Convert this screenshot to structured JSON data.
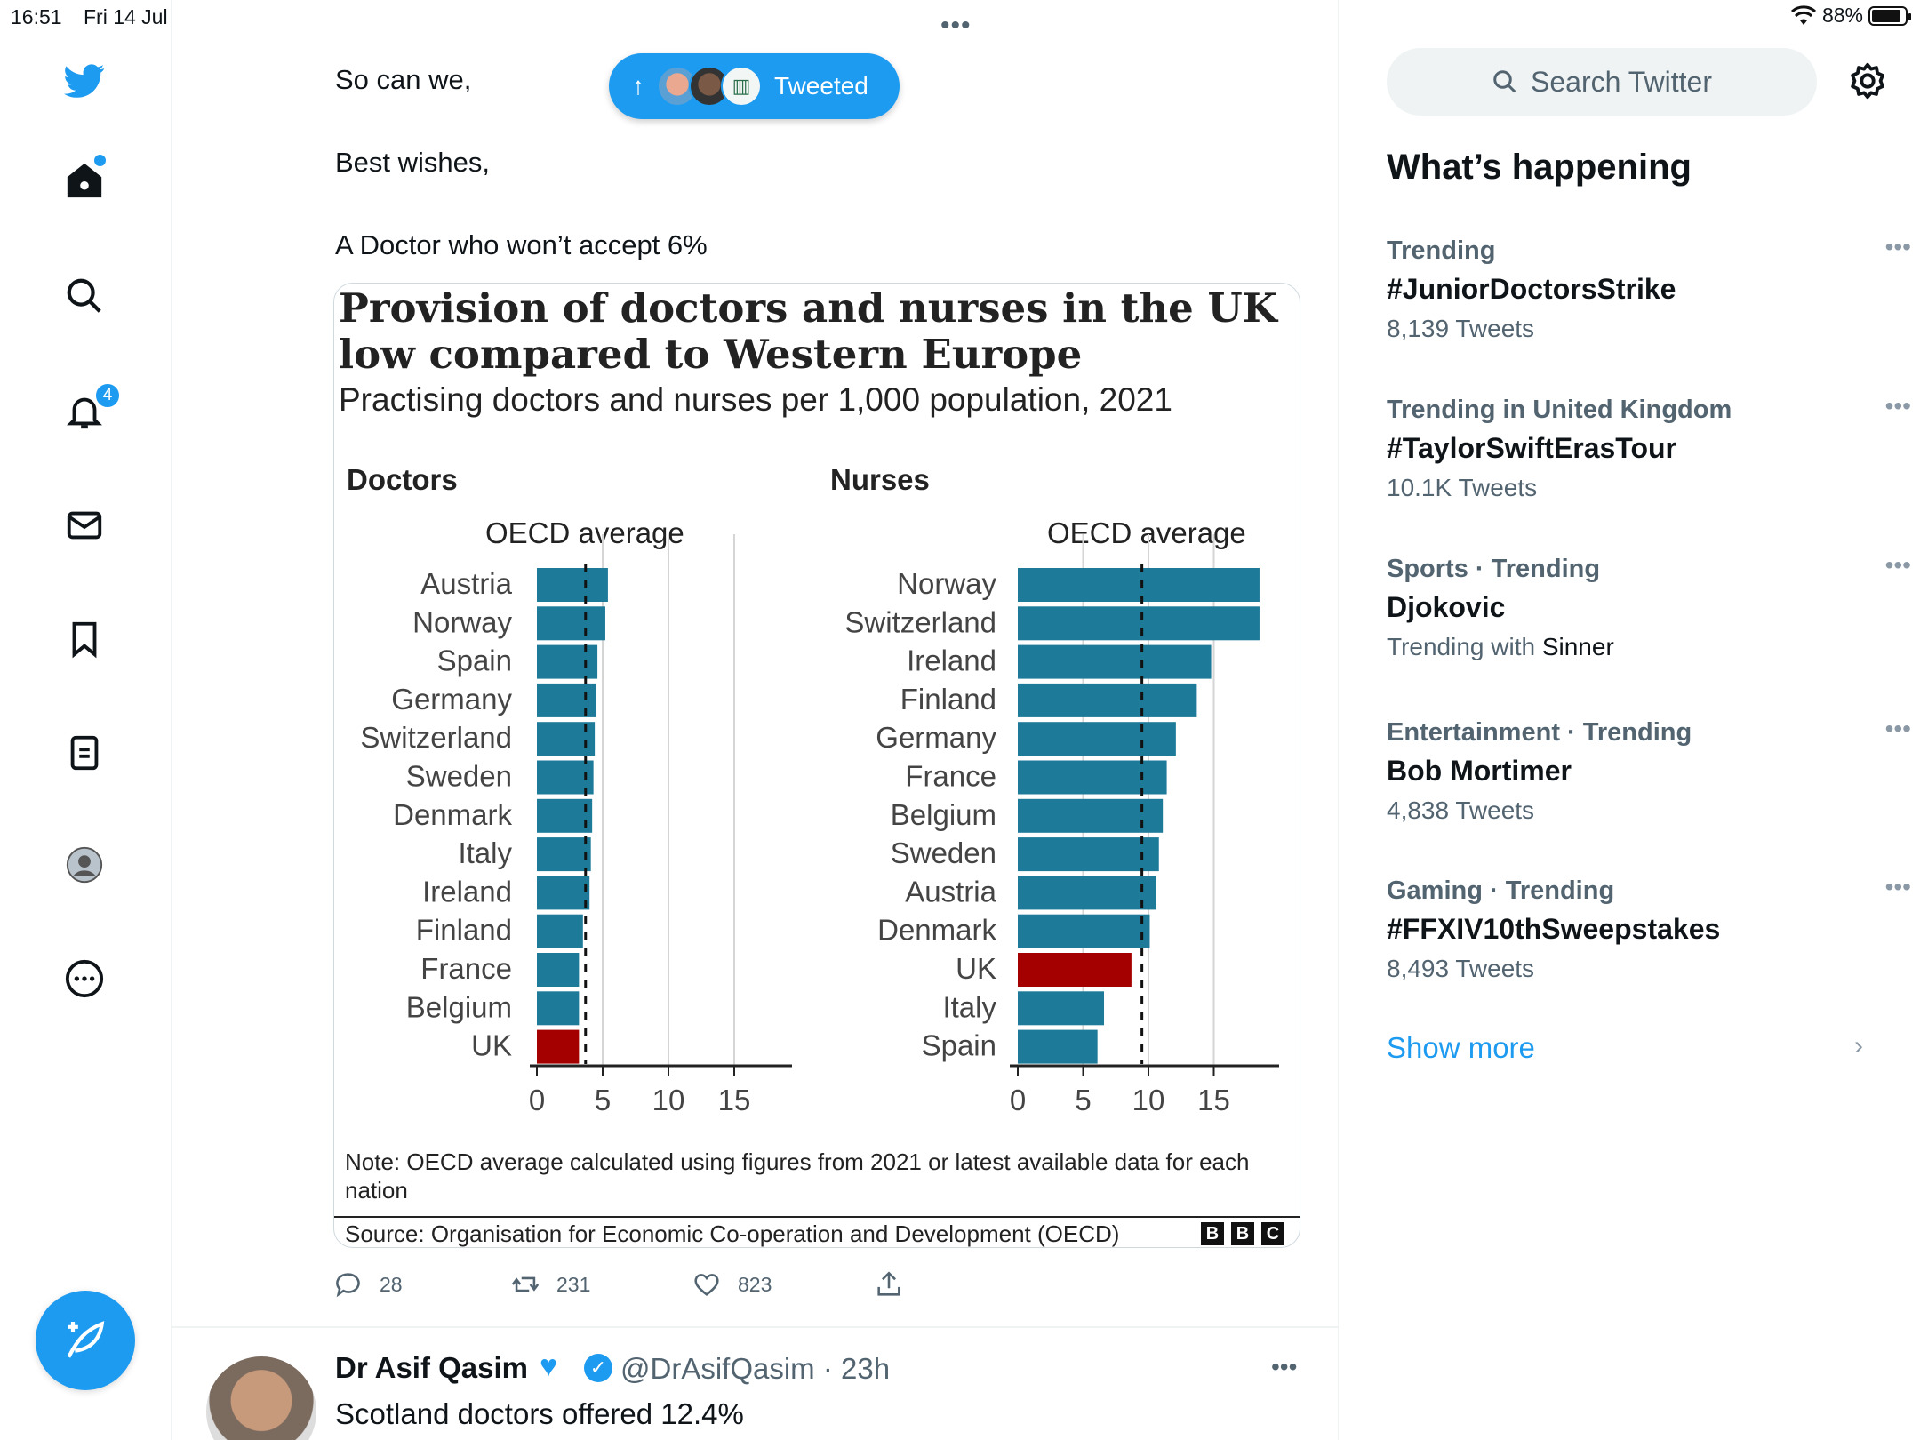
{
  "status": {
    "time": "16:51",
    "date": "Fri 14 Jul",
    "battery": "88%"
  },
  "nav": {
    "notifications_badge": "4"
  },
  "tweet": {
    "lines": [
      "So can we,",
      "Best wishes,",
      "A Doctor who won’t accept 6%"
    ],
    "tweeted_pill": "Tweeted",
    "actions": {
      "replies": "28",
      "retweets": "231",
      "likes": "823"
    }
  },
  "chart_data": [
    {
      "type": "bar",
      "title": "Provision of doctors and nurses in the UK low compared to Western Europe",
      "subtitle": "Practising doctors and nurses per 1,000 population, 2021",
      "panel": "Doctors",
      "annotation": "OECD average",
      "oecd_average": 3.7,
      "categories": [
        "Austria",
        "Norway",
        "Spain",
        "Germany",
        "Switzerland",
        "Sweden",
        "Denmark",
        "Italy",
        "Ireland",
        "Finland",
        "France",
        "Belgium",
        "UK"
      ],
      "values": [
        5.4,
        5.2,
        4.6,
        4.5,
        4.4,
        4.3,
        4.2,
        4.1,
        4.0,
        3.5,
        3.2,
        3.2,
        3.2
      ],
      "highlight": "UK",
      "xticks": [
        0,
        5,
        10,
        15
      ],
      "xlim": [
        0,
        18.9
      ],
      "grid": true,
      "colors": {
        "bar": "#1d7a99",
        "highlight": "#a50000",
        "average": "#111111"
      }
    },
    {
      "type": "bar",
      "panel": "Nurses",
      "annotation": "OECD average",
      "oecd_average": 9.5,
      "categories": [
        "Norway",
        "Switzerland",
        "Ireland",
        "Finland",
        "Germany",
        "France",
        "Belgium",
        "Sweden",
        "Austria",
        "Denmark",
        "UK",
        "Italy",
        "Spain"
      ],
      "values": [
        18.5,
        18.5,
        14.8,
        13.7,
        12.1,
        11.4,
        11.1,
        10.8,
        10.6,
        10.1,
        8.7,
        6.6,
        6.1
      ],
      "highlight": "UK",
      "xticks": [
        0,
        5,
        10,
        15
      ],
      "xlim": [
        0,
        19.5
      ],
      "grid": true,
      "colors": {
        "bar": "#1d7a99",
        "highlight": "#a50000",
        "average": "#111111"
      }
    }
  ],
  "chart_note": "Note: OECD average calculated using figures from 2021 or latest available data for each nation",
  "chart_source": "Source: Organisation for Economic Co-operation and Development (OECD)",
  "chart_logo": [
    "B",
    "B",
    "C"
  ],
  "next_tweet": {
    "name": "Dr Asif Qasim",
    "handle": "@DrAsifQasim · 23h",
    "text": "Scotland doctors offered 12.4%"
  },
  "search": {
    "placeholder": "Search Twitter"
  },
  "whats_happening": {
    "title": "What’s happening",
    "trends": [
      {
        "category": "Trending",
        "name": "#JuniorDoctorsStrike",
        "count": "8,139 Tweets"
      },
      {
        "category": "Trending in United Kingdom",
        "name": "#TaylorSwiftErasTour",
        "count": "10.1K Tweets"
      },
      {
        "category": "Sports · Trending",
        "name": "Djokovic",
        "count_prefix": "Trending with ",
        "count_with": "Sinner"
      },
      {
        "category": "Entertainment · Trending",
        "name": "Bob Mortimer",
        "count": "4,838 Tweets"
      },
      {
        "category": "Gaming · Trending",
        "name": "#FFXIV10thSweepstakes",
        "count": "8,493 Tweets"
      }
    ],
    "show_more": "Show more"
  }
}
